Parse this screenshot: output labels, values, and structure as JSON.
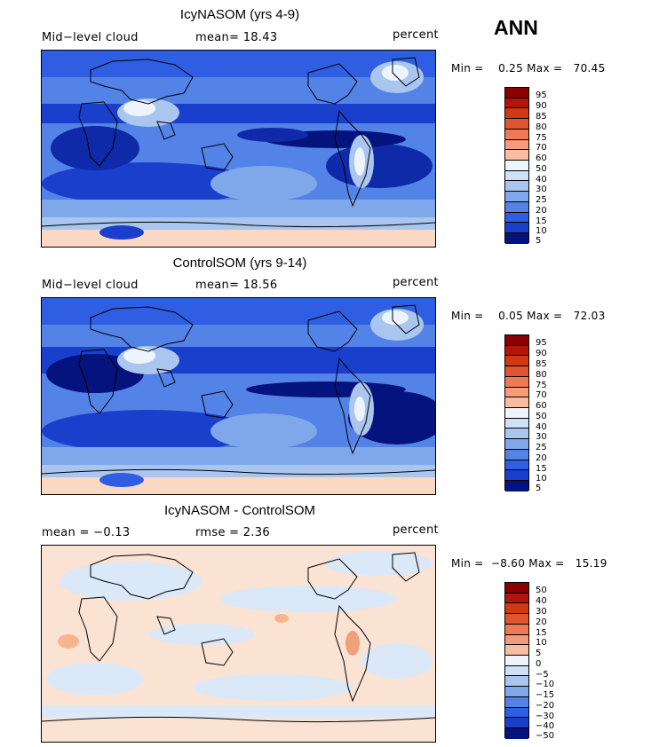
{
  "season": "ANN",
  "colors": {
    "reds": [
      "#8b0000",
      "#b2160a",
      "#cf3a14",
      "#e05530",
      "#ed7a55",
      "#f39c7a",
      "#f8bca0",
      "#fbd8c4"
    ],
    "neutral": "#eef4fb",
    "blues": [
      "#cfe1f6",
      "#aac6ef",
      "#7ea8ea",
      "#5383e6",
      "#2f5ee2",
      "#1a3fcc",
      "#0e2aa8",
      "#05137e"
    ],
    "coast": "#000000"
  },
  "panels": [
    {
      "title": "IcyNASOM (yrs 4-9)",
      "left_label": "Mid−level cloud",
      "mid_label": "mean=   18.43",
      "units": "percent",
      "minmax": "Min =    0.25 Max =   70.45",
      "colorbar_ticks": [
        "95",
        "90",
        "85",
        "80",
        "75",
        "70",
        "60",
        "50",
        "40",
        "30",
        "25",
        "20",
        "15",
        "10",
        "5"
      ]
    },
    {
      "title": "ControlSOM (yrs 9-14)",
      "left_label": "Mid−level cloud",
      "mid_label": "mean=   18.56",
      "units": "percent",
      "minmax": "Min =    0.05 Max =   72.03",
      "colorbar_ticks": [
        "95",
        "90",
        "85",
        "80",
        "75",
        "70",
        "60",
        "50",
        "40",
        "30",
        "25",
        "20",
        "15",
        "10",
        "5"
      ]
    },
    {
      "title": "IcyNASOM - ControlSOM",
      "left_label": "mean =   −0.13",
      "mid_label": "rmse =     2.36",
      "units": "percent",
      "minmax": "Min =  −8.60 Max =   15.19",
      "colorbar_ticks": [
        "50",
        "40",
        "30",
        "20",
        "15",
        "10",
        "5",
        "0",
        "−5",
        "−10",
        "−15",
        "−20",
        "−30",
        "−40",
        "−50"
      ]
    }
  ]
}
